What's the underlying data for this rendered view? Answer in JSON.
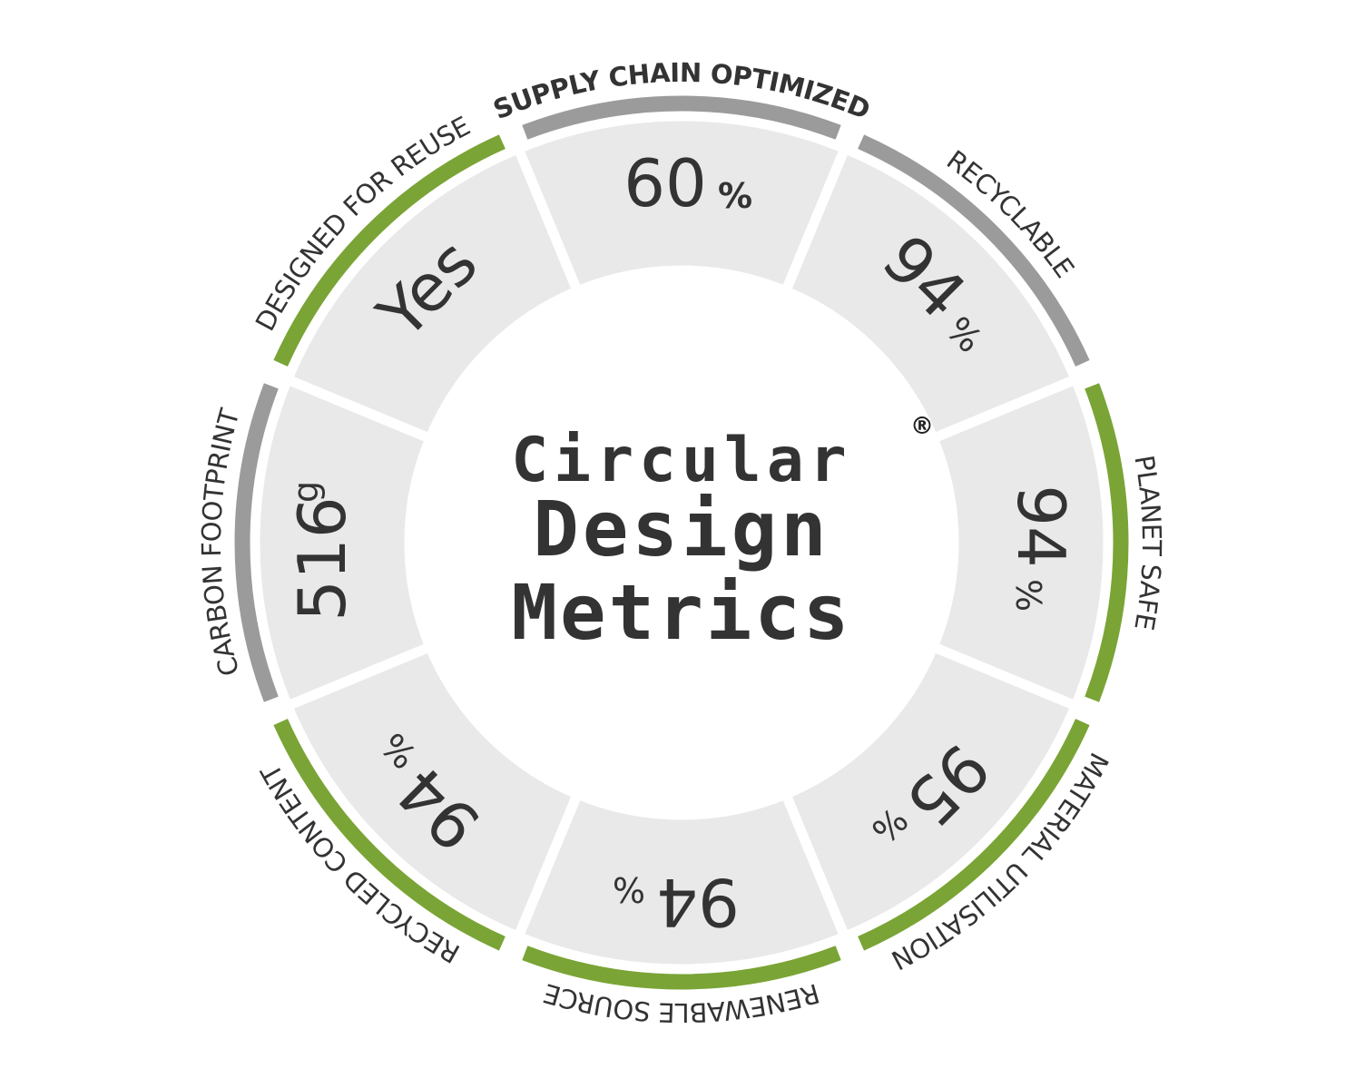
{
  "center": {
    "line1": "Circular",
    "line2": "Design",
    "line3": "Metrics",
    "trademark": "®"
  },
  "colors": {
    "green": "#7aa435",
    "gray": "#9b9b9b",
    "segment_fill": "#e9e9e9",
    "text": "#333333"
  },
  "metrics": [
    {
      "label": "SUPPLY CHAIN OPTIMIZED",
      "value": "60",
      "unit": "%",
      "rim": "gray",
      "highlight": true
    },
    {
      "label": "RECYCLABLE",
      "value": "94",
      "unit": "%",
      "rim": "gray"
    },
    {
      "label": "PLANET SAFE",
      "value": "94",
      "unit": "%",
      "rim": "green"
    },
    {
      "label": "MATERIAL UTILISATION",
      "value": "95",
      "unit": "%",
      "rim": "green"
    },
    {
      "label": "RENEWABLE SOURCE",
      "value": "94",
      "unit": "%",
      "rim": "green"
    },
    {
      "label": "RECYCLED CONTENT",
      "value": "94",
      "unit": "%",
      "rim": "green"
    },
    {
      "label": "CARBON FOOTPRINT",
      "value": "516",
      "unit": "g",
      "rim": "gray"
    },
    {
      "label": "DESIGNED FOR REUSE",
      "value": "Yes",
      "unit": "",
      "rim": "green"
    }
  ]
}
